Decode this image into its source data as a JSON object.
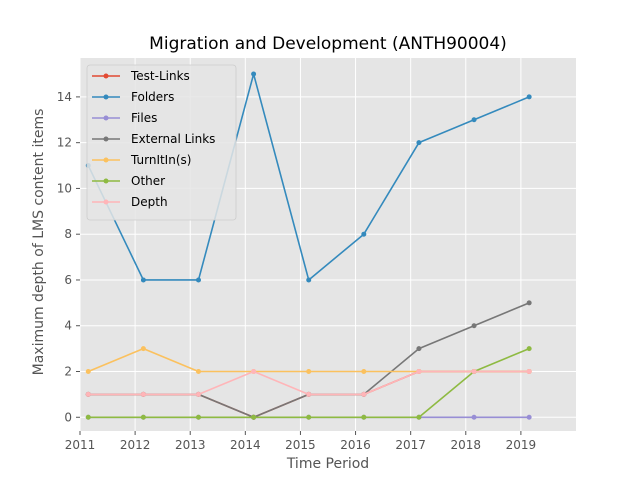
{
  "chart_data": {
    "type": "line",
    "title": "Migration and Development (ANTH90004)",
    "xlabel": "Time Period",
    "ylabel": "Maximum depth of LMS content items",
    "xlim": [
      2011,
      2020
    ],
    "ylim": [
      -0.6,
      15.7
    ],
    "xticks": [
      2011,
      2012,
      2013,
      2014,
      2015,
      2016,
      2017,
      2018,
      2019
    ],
    "xtick_labels": [
      "2011",
      "2012",
      "2013",
      "2014",
      "2015",
      "2016",
      "2017",
      "2018",
      "2019"
    ],
    "yticks": [
      0,
      2,
      4,
      6,
      8,
      10,
      12,
      14
    ],
    "ytick_labels": [
      "0",
      "2",
      "4",
      "6",
      "8",
      "10",
      "12",
      "14"
    ],
    "grid": true,
    "legend_position": "top-left",
    "background": "#e5e5e5",
    "x": [
      2011.15,
      2012.15,
      2013.15,
      2014.15,
      2015.15,
      2016.15,
      2017.15,
      2018.15,
      2019.15
    ],
    "series": [
      {
        "name": "Test-Links",
        "color": "#e24a33",
        "values": [
          1,
          1,
          1,
          0,
          1,
          1,
          2,
          2,
          2
        ]
      },
      {
        "name": "Folders",
        "color": "#348abd",
        "values": [
          11,
          6,
          6,
          15,
          6,
          8,
          12,
          13,
          14
        ]
      },
      {
        "name": "Files",
        "color": "#988ed5",
        "values": [
          0,
          0,
          0,
          0,
          0,
          0,
          0,
          0,
          0
        ]
      },
      {
        "name": "External Links",
        "color": "#777777",
        "values": [
          1,
          1,
          1,
          0,
          1,
          1,
          3,
          4,
          5
        ]
      },
      {
        "name": "TurnItIn(s)",
        "color": "#fbc15e",
        "values": [
          2,
          3,
          2,
          2,
          2,
          2,
          2,
          2,
          2
        ]
      },
      {
        "name": "Other",
        "color": "#8eba42",
        "values": [
          0,
          0,
          0,
          0,
          0,
          0,
          0,
          2,
          3
        ]
      },
      {
        "name": "Depth",
        "color": "#ffb5b8",
        "values": [
          1,
          1,
          1,
          2,
          1,
          1,
          2,
          2,
          2
        ]
      }
    ]
  }
}
